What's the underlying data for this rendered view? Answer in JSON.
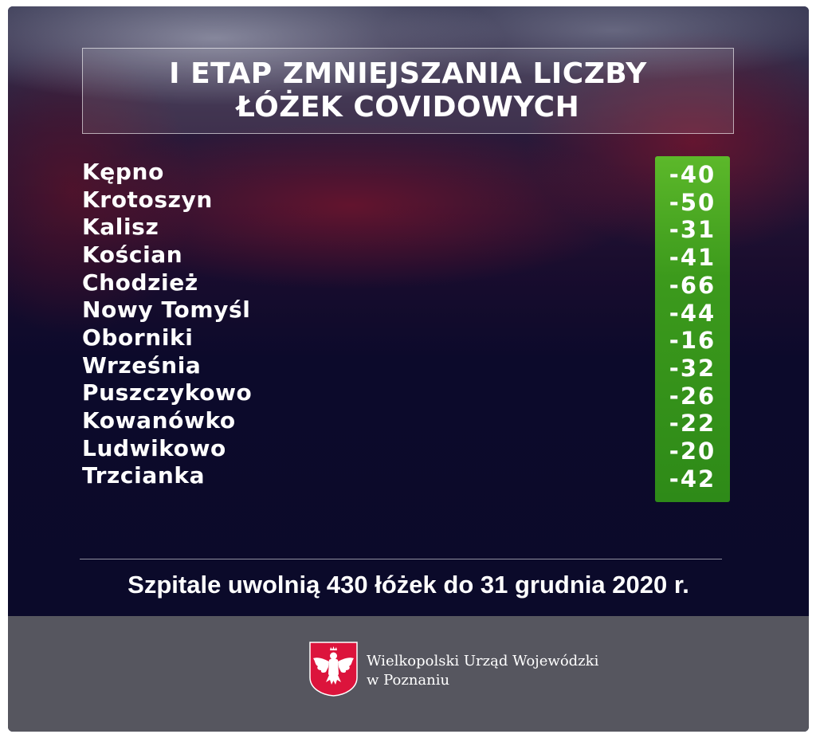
{
  "title": {
    "line1": "I ETAP ZMNIEJSZANIA LICZBY",
    "line2": "ŁÓŻEK COVIDOWYCH"
  },
  "rows": [
    {
      "city": "Kępno",
      "value": "-40"
    },
    {
      "city": "Krotoszyn",
      "value": "-50"
    },
    {
      "city": "Kalisz",
      "value": "-31"
    },
    {
      "city": "Kościan",
      "value": "-41"
    },
    {
      "city": "Chodzież",
      "value": "-66"
    },
    {
      "city": "Nowy Tomyśl",
      "value": "-44"
    },
    {
      "city": "Oborniki",
      "value": "-16"
    },
    {
      "city": "Września",
      "value": "-32"
    },
    {
      "city": "Puszczykowo",
      "value": "-26"
    },
    {
      "city": "Kowanówko",
      "value": "-22"
    },
    {
      "city": "Ludwikowo",
      "value": "-20"
    },
    {
      "city": "Trzcianka",
      "value": "-42"
    }
  ],
  "summary": "Szpitale uwolnią 430 łóżek do 31 grudnia 2020 r.",
  "footer": {
    "office_line1": "Wielkopolski Urząd Wojewódzki",
    "office_line2": "w Poznaniu",
    "emblem_icon": "polish-eagle-emblem-icon"
  },
  "colors": {
    "background": "#0b0a2a",
    "value_green": "#3c9a1c",
    "footer": "#56565f",
    "emblem_red": "#dc143c"
  }
}
